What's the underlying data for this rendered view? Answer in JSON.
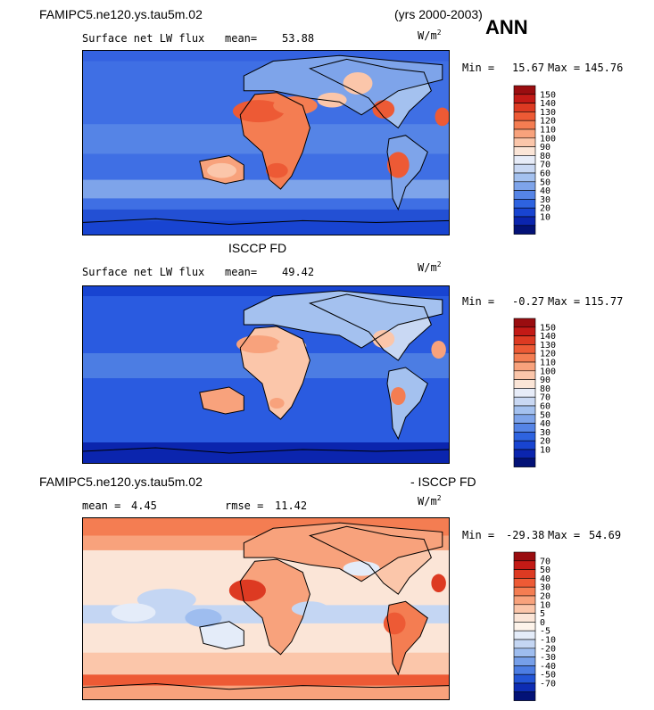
{
  "header": {
    "case_name": "FAMIPC5.ne120.ys.tau5m.02",
    "years": "(yrs 2000-2003)",
    "season": "ANN"
  },
  "panels": [
    {
      "id": "model",
      "variable": "Surface net LW flux",
      "stat_label": "mean=",
      "stat_value": "53.88",
      "units_base": "W/m",
      "units_exp": "2",
      "min_label": "Min =",
      "min_value": "15.67",
      "max_label": "Max =",
      "max_value": "145.76",
      "colorbar_labels": [
        "150",
        "140",
        "130",
        "120",
        "110",
        "100",
        "90",
        "80",
        "70",
        "60",
        "50",
        "40",
        "30",
        "20",
        "10"
      ],
      "colorbar_colors": [
        "#9a0d10",
        "#c31a16",
        "#dd3a22",
        "#ed5a35",
        "#f47d52",
        "#f8a27c",
        "#fbc6aa",
        "#fbe5d7",
        "#e7ecf8",
        "#c9d8f3",
        "#a4c1ef",
        "#7ea4ea",
        "#5584e6",
        "#2e63e0",
        "#1844d1",
        "#0b25ae",
        "#031277"
      ]
    },
    {
      "id": "obs",
      "title": "ISCCP FD",
      "variable": "Surface net LW flux",
      "stat_label": "mean=",
      "stat_value": "49.42",
      "units_base": "W/m",
      "units_exp": "2",
      "min_label": "Min =",
      "min_value": "-0.27",
      "max_label": "Max =",
      "max_value": "115.77",
      "colorbar_labels": [
        "150",
        "140",
        "130",
        "120",
        "110",
        "100",
        "90",
        "80",
        "70",
        "60",
        "50",
        "40",
        "30",
        "20",
        "10"
      ],
      "colorbar_colors": [
        "#9a0d10",
        "#c31a16",
        "#dd3a22",
        "#ed5a35",
        "#f47d52",
        "#f8a27c",
        "#fbc6aa",
        "#fbe5d7",
        "#e7ecf8",
        "#c9d8f3",
        "#a4c1ef",
        "#7ea4ea",
        "#5584e6",
        "#2e63e0",
        "#1844d1",
        "#0b25ae",
        "#031277"
      ]
    },
    {
      "id": "diff",
      "title_left": "FAMIPC5.ne120.ys.tau5m.02",
      "title_right": "- ISCCP FD",
      "stat_label": "mean =",
      "stat_value": "4.45",
      "stat2_label": "rmse =",
      "stat2_value": "11.42",
      "units_base": "W/m",
      "units_exp": "2",
      "min_label": "Min =",
      "min_value": "-29.38",
      "max_label": "Max =",
      "max_value": "54.69",
      "colorbar_labels": [
        "70",
        "50",
        "40",
        "30",
        "20",
        "10",
        "5",
        "0",
        "-5",
        "-10",
        "-20",
        "-30",
        "-40",
        "-50",
        "-70"
      ],
      "colorbar_colors": [
        "#9a0d10",
        "#c31a16",
        "#dd3a22",
        "#ed5a35",
        "#f47d52",
        "#f8a27c",
        "#fbc6aa",
        "#fbe5d7",
        "#fdf3ea",
        "#e4ecf9",
        "#c4d6f3",
        "#9ebdef",
        "#769fe9",
        "#4c7de3",
        "#2355d6",
        "#0d2cb3",
        "#031277"
      ]
    }
  ]
}
